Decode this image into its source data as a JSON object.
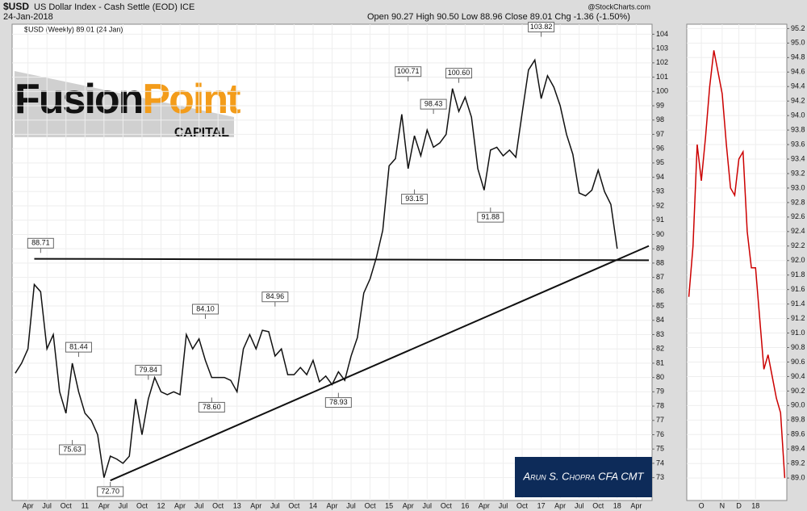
{
  "header": {
    "symbol": "$USD",
    "name": "US Dollar Index - Cash Settle (EOD) ICE",
    "date": "24-Jan-2018",
    "quote": "Open 90.27 High 90.50 Low 88.96 Close 89.01 Chg -1.36 (-1.50%)",
    "source": "@StockCharts.com"
  },
  "logo": {
    "word1": "Fusion",
    "word2": "Point",
    "word3": "CAPITAL"
  },
  "watermark": "Arun S. Chopra CFA CMT",
  "chart_data": [
    {
      "type": "line",
      "legend": "$USD (Weekly) 89.01 (24 Jan)",
      "categories": [
        null,
        null,
        "Apr",
        null,
        null,
        "Jul",
        null,
        null,
        "Oct",
        null,
        null,
        "11",
        null,
        null,
        "Apr",
        null,
        null,
        "Jul",
        null,
        null,
        "Oct",
        null,
        null,
        "12",
        null,
        null,
        "Apr",
        null,
        null,
        "Jul",
        null,
        null,
        "Oct",
        null,
        null,
        "13",
        null,
        null,
        "Apr",
        null,
        null,
        "Jul",
        null,
        null,
        "Oct",
        null,
        null,
        "14",
        null,
        null,
        "Apr",
        null,
        null,
        "Jul",
        null,
        null,
        "Oct",
        null,
        null,
        "15",
        null,
        null,
        "Apr",
        null,
        null,
        "Jul",
        null,
        null,
        "Oct",
        null,
        null,
        "16",
        null,
        null,
        "Apr",
        null,
        null,
        "Jul",
        null,
        null,
        "Oct",
        null,
        null,
        "17",
        null,
        null,
        "Apr",
        null,
        null,
        "Jul",
        null,
        null,
        "Oct",
        null,
        null,
        "18",
        null,
        null,
        "Apr",
        null,
        null
      ],
      "series": [
        {
          "name": "$USD",
          "color": "#111111",
          "values": [
            80.3,
            81,
            82,
            86.5,
            86,
            82,
            83,
            79,
            77.5,
            81,
            79,
            77.5,
            77,
            76,
            73,
            74.5,
            74.3,
            74,
            74.5,
            78.5,
            76,
            78.5,
            80,
            79,
            78.8,
            79,
            78.8,
            83,
            82,
            82.7,
            81.2,
            80,
            80,
            80,
            79.8,
            79,
            82,
            83,
            82,
            83.3,
            83.2,
            81.5,
            82,
            80.2,
            80.2,
            80.7,
            80.2,
            81.2,
            79.7,
            80.1,
            79.5,
            80.4,
            79.8,
            81.5,
            82.8,
            85.9,
            86.9,
            88.4,
            90.3,
            94.8,
            95.3,
            98.4,
            94.6,
            96.9,
            95.5,
            97.3,
            96.1,
            96.4,
            97,
            100.2,
            98.6,
            99.6,
            98.2,
            94.6,
            93.1,
            95.9,
            96.1,
            95.5,
            95.9,
            95.4,
            98.5,
            101.5,
            102.2,
            99.5,
            101.1,
            100.3,
            99,
            97,
            95.6,
            92.9,
            92.7,
            93.1,
            94.5,
            93,
            92.1,
            89.0,
            null,
            null,
            null,
            null,
            null
          ]
        }
      ],
      "annotations": [
        {
          "x": 4,
          "value": 88.71,
          "label": "88.71"
        },
        {
          "x": 10,
          "value": 81.44,
          "label": "81.44"
        },
        {
          "x": 9,
          "value": 75.63,
          "label": "75.63"
        },
        {
          "x": 15,
          "value": 72.7,
          "label": "72.70"
        },
        {
          "x": 21,
          "value": 79.84,
          "label": "79.84"
        },
        {
          "x": 30,
          "value": 84.1,
          "label": "84.10"
        },
        {
          "x": 31,
          "value": 78.6,
          "label": "78.60"
        },
        {
          "x": 41,
          "value": 84.96,
          "label": "84.96"
        },
        {
          "x": 51,
          "value": 78.93,
          "label": "78.93"
        },
        {
          "x": 62,
          "value": 100.71,
          "label": "100.71"
        },
        {
          "x": 63,
          "value": 93.15,
          "label": "93.15"
        },
        {
          "x": 66,
          "value": 98.43,
          "label": "98.43"
        },
        {
          "x": 70,
          "value": 100.6,
          "label": "100.60"
        },
        {
          "x": 75,
          "value": 91.88,
          "label": "91.88"
        },
        {
          "x": 83,
          "value": 103.82,
          "label": "103.82"
        }
      ],
      "trendlines": [
        {
          "x": [
            3,
            100
          ],
          "values": [
            88.3,
            88.2
          ]
        },
        {
          "x": [
            15,
            100
          ],
          "values": [
            72.8,
            89.2
          ]
        }
      ],
      "ylim": [
        71.4,
        104.7
      ],
      "yticks": [
        73,
        74,
        75,
        76,
        77,
        78,
        79,
        80,
        81,
        82,
        83,
        84,
        85,
        86,
        87,
        88,
        89,
        90,
        91,
        92,
        93,
        94,
        95,
        96,
        97,
        98,
        99,
        100,
        101,
        102,
        103,
        104
      ],
      "grid": true
    },
    {
      "type": "line",
      "categories": [
        null,
        null,
        null,
        "O",
        null,
        null,
        null,
        null,
        "N",
        null,
        null,
        null,
        "D",
        null,
        null,
        null,
        "18",
        null,
        null,
        null,
        null,
        null,
        null,
        null
      ],
      "series": [
        {
          "name": "$USD Daily",
          "color": "#cc0000",
          "values": [
            91.5,
            92.2,
            93.6,
            93.1,
            93.7,
            94.4,
            94.9,
            94.6,
            94.3,
            93.6,
            93.0,
            92.9,
            93.4,
            93.5,
            92.4,
            91.9,
            91.9,
            91.2,
            90.5,
            90.7,
            90.4,
            90.1,
            89.9,
            89.0
          ]
        }
      ],
      "ylim": [
        88.69,
        95.26
      ],
      "yticks": [
        {
          "value": 89.0,
          "label": "89.0"
        },
        89.2,
        89.4,
        89.6,
        89.8,
        {
          "value": 90.0,
          "label": "90.0"
        },
        90.2,
        90.4,
        90.6,
        90.8,
        {
          "value": 91.0,
          "label": "91.0"
        },
        91.2,
        91.4,
        91.6,
        91.8,
        {
          "value": 92.0,
          "label": "92.0"
        },
        92.2,
        92.4,
        92.6,
        92.8,
        {
          "value": 93.0,
          "label": "93.0"
        },
        93.2,
        93.4,
        93.6,
        93.8,
        {
          "value": 94.0,
          "label": "94.0"
        },
        94.2,
        94.4,
        94.6,
        94.8,
        {
          "value": 95.0,
          "label": "95.0"
        },
        95.2
      ],
      "grid": true
    }
  ]
}
